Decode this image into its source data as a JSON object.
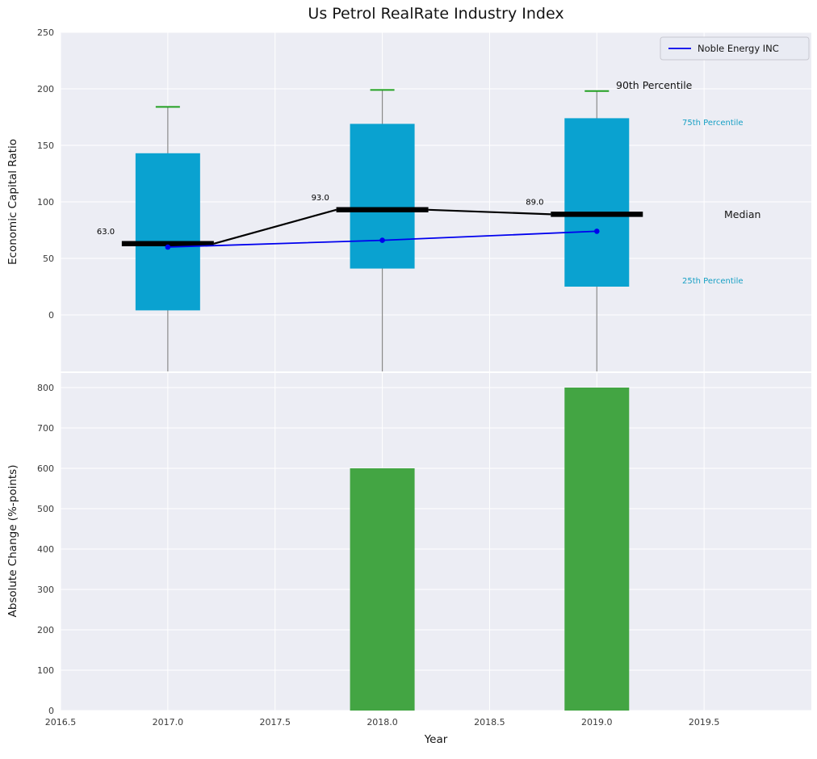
{
  "title": "Us Petrol RealRate Industry Index",
  "legend": {
    "label": "Noble Energy INC"
  },
  "colors": {
    "plot_bg": "#ecedf4",
    "grid": "#ffffff",
    "box_fill": "#0aa2d0",
    "cap_green": "#22a022",
    "bar_green": "#43a543",
    "median_black": "#000000",
    "company_blue": "#0000ee",
    "whisker_gray": "#8a8a8a",
    "percentile_teal": "#17a0c4",
    "tick_text": "#3a3a3a",
    "title_text": "#141414"
  },
  "chart_data": [
    {
      "type": "boxplot+line",
      "title": "Us Petrol RealRate Industry Index",
      "ylabel": "Economic Capital Ratio",
      "ylim": [
        -50,
        250
      ],
      "yticks": [
        0,
        50,
        100,
        150,
        200,
        250
      ],
      "xlim": [
        2016.5,
        2020.0
      ],
      "grid": true,
      "legend_position": "upper right",
      "boxes": [
        {
          "year": 2017,
          "q25": 4,
          "median": 63,
          "q75": 143,
          "p90": 184,
          "median_label": "63.0"
        },
        {
          "year": 2018,
          "q25": 41,
          "median": 93,
          "q75": 169,
          "p90": 199,
          "median_label": "93.0"
        },
        {
          "year": 2019,
          "q25": 25,
          "median": 89,
          "q75": 174,
          "p90": 198,
          "median_label": "89.0"
        }
      ],
      "series": [
        {
          "name": "Noble Energy INC",
          "x": [
            2017,
            2018,
            2019
          ],
          "y": [
            60,
            66,
            74
          ]
        }
      ],
      "annotations": {
        "p90": "90th Percentile",
        "p75": "75th Percentile",
        "median": "Median",
        "p25": "25th Percentile"
      }
    },
    {
      "type": "bar",
      "ylabel": "Absolute Change (%-points)",
      "xlabel": "Year",
      "ylim": [
        0,
        836
      ],
      "yticks": [
        0,
        100,
        200,
        300,
        400,
        500,
        600,
        700,
        800
      ],
      "xticks": [
        2016.5,
        2017.0,
        2017.5,
        2018.0,
        2018.5,
        2019.0,
        2019.5
      ],
      "categories": [
        2018,
        2019
      ],
      "values": [
        600,
        800
      ]
    }
  ]
}
